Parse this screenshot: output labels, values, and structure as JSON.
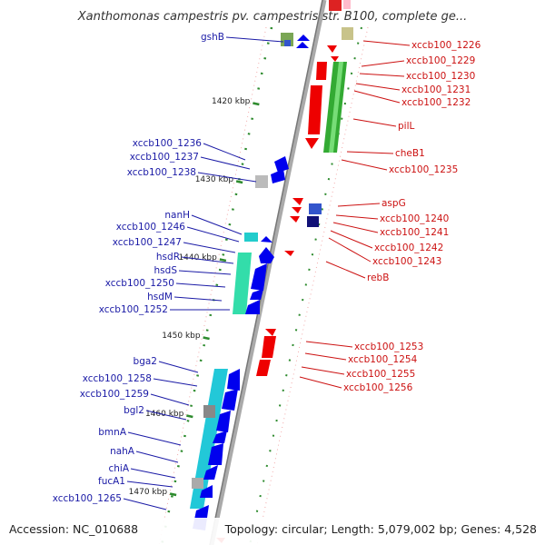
{
  "title": "Xanthomonas campestris pv. campestris str. B100, complete ge...",
  "footer": {
    "accession": "Accession: NC_010688",
    "topology": "Topology: circular; Length: 5,079,002 bp; Genes: 4,528"
  },
  "colors": {
    "backbone": "#999999",
    "left_label": "#1a1aa6",
    "right_label": "#cc1111",
    "forward_gene": "#0000ee",
    "reverse_gene": "#ee0000",
    "ruler_tick": "#2e8b2e",
    "gc_dot": "#229922"
  },
  "ruler": [
    {
      "label": "1420 kbp",
      "kbp": 1420
    },
    {
      "label": "1430 kbp",
      "kbp": 1430
    },
    {
      "label": "1440 kbp",
      "kbp": 1440
    },
    {
      "label": "1450 kbp",
      "kbp": 1450
    },
    {
      "label": "1460 kbp",
      "kbp": 1460
    },
    {
      "label": "1470 kbp",
      "kbp": 1470
    }
  ],
  "left_labels": [
    "gshB",
    "xccb100_1236",
    "xccb100_1237",
    "xccb100_1238",
    "nanH",
    "xccb100_1246",
    "xccb100_1247",
    "hsdR",
    "hsdS",
    "xccb100_1250",
    "hsdM",
    "xccb100_1252",
    "bga2",
    "xccb100_1258",
    "xccb100_1259",
    "bgl2",
    "bmnA",
    "nahA",
    "chiA",
    "fucA1",
    "xccb100_1265"
  ],
  "right_labels": [
    "xccb100_1226",
    "xccb100_1229",
    "xccb100_1230",
    "xccb100_1231",
    "xccb100_1232",
    "pilL",
    "cheB1",
    "xccb100_1235",
    "aspG",
    "xccb100_1240",
    "xccb100_1241",
    "xccb100_1242",
    "xccb100_1243",
    "rebB",
    "xccb100_1253",
    "xccb100_1254",
    "xccb100_1255",
    "xccb100_1256"
  ]
}
